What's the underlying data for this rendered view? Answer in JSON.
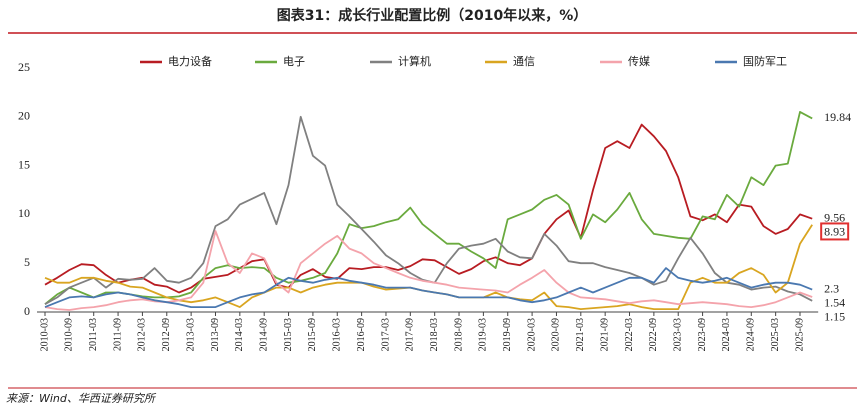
{
  "chart_data": {
    "type": "line",
    "title": "图表31：成长行业配置比例（2010年以来，%）",
    "source": "来源：Wind、华西证券研究所",
    "categories": [
      "2010-03",
      null,
      "2010-09",
      null,
      "2011-03",
      null,
      "2011-09",
      null,
      "2012-03",
      null,
      "2012-09",
      null,
      "2013-03",
      null,
      "2013-09",
      null,
      "2014-03",
      null,
      "2014-09",
      null,
      "2015-03",
      null,
      "2015-09",
      null,
      "2016-03",
      null,
      "2016-09",
      null,
      "2017-03",
      null,
      "2017-09",
      null,
      "2018-03",
      null,
      "2018-09",
      null,
      "2019-03",
      null,
      "2019-09",
      null,
      "2020-03",
      null,
      "2020-09",
      null,
      "2021-03",
      null,
      "2021-09",
      null,
      "2022-03",
      null,
      "2022-09",
      null,
      "2023-03",
      null,
      "2023-09",
      null,
      "2024-03",
      null,
      "2024-09",
      null,
      "2025-03",
      null,
      "2025-09",
      null
    ],
    "ylim": [
      0,
      25
    ],
    "yticks": [
      0,
      5,
      10,
      15,
      20,
      25
    ],
    "series": [
      {
        "name": "电力设备",
        "color": "#b81c22",
        "values": [
          2.8,
          3.5,
          4.3,
          4.9,
          4.8,
          3.8,
          3.0,
          3.3,
          3.5,
          2.8,
          2.6,
          2.0,
          2.5,
          3.4,
          3.6,
          3.8,
          4.5,
          5.2,
          5.4,
          2.8,
          2.5,
          3.8,
          4.4,
          3.6,
          3.4,
          4.5,
          4.4,
          4.6,
          4.6,
          4.3,
          4.7,
          5.4,
          5.3,
          4.6,
          3.9,
          4.4,
          5.2,
          5.6,
          5.0,
          4.8,
          5.5,
          8.0,
          9.5,
          10.4,
          7.6,
          12.5,
          16.8,
          17.5,
          16.8,
          19.2,
          18.0,
          16.5,
          13.8,
          9.8,
          9.4,
          10.0,
          9.2,
          11.0,
          10.8,
          8.8,
          8.0,
          8.5,
          10.0,
          9.56
        ]
      },
      {
        "name": "电子",
        "color": "#6aaa3e",
        "values": [
          0.8,
          1.8,
          2.5,
          2.0,
          1.5,
          2.0,
          2.0,
          1.8,
          1.6,
          1.5,
          1.5,
          1.6,
          2.0,
          3.5,
          4.5,
          4.8,
          4.5,
          4.6,
          4.5,
          3.5,
          3.0,
          3.2,
          3.5,
          4.0,
          6.0,
          9.0,
          8.6,
          8.8,
          9.2,
          9.5,
          10.7,
          9.0,
          8.0,
          7.0,
          7.0,
          6.2,
          5.5,
          4.5,
          9.5,
          10.0,
          10.5,
          11.5,
          12.0,
          11.0,
          7.5,
          10.0,
          9.2,
          10.5,
          12.2,
          9.5,
          8.0,
          7.8,
          7.6,
          7.5,
          9.8,
          9.5,
          12.0,
          10.8,
          13.8,
          13.0,
          15.0,
          15.2,
          20.5,
          19.84
        ]
      },
      {
        "name": "计算机",
        "color": "#808080",
        "values": [
          0.8,
          1.5,
          2.5,
          3.0,
          3.5,
          2.5,
          3.4,
          3.3,
          3.4,
          4.5,
          3.2,
          3.0,
          3.5,
          5.0,
          8.8,
          9.5,
          11.0,
          11.6,
          12.2,
          9.0,
          13.0,
          20.0,
          16.0,
          15.0,
          11.0,
          9.8,
          8.5,
          7.2,
          5.8,
          5.0,
          4.0,
          3.3,
          3.0,
          5.0,
          6.5,
          6.8,
          7.0,
          7.5,
          6.2,
          5.6,
          5.5,
          8.0,
          6.8,
          5.2,
          5.0,
          5.0,
          4.6,
          4.3,
          4.0,
          3.5,
          2.8,
          3.2,
          5.5,
          7.6,
          6.0,
          4.0,
          3.0,
          2.8,
          2.3,
          2.5,
          2.6,
          2.1,
          1.8,
          1.15
        ]
      },
      {
        "name": "通信",
        "color": "#d9a520",
        "boxed": true,
        "values": [
          3.5,
          3.0,
          3.0,
          3.5,
          3.5,
          3.2,
          3.0,
          2.6,
          2.5,
          2.0,
          1.5,
          1.2,
          1.0,
          1.2,
          1.5,
          1.0,
          0.5,
          1.5,
          2.0,
          2.5,
          2.5,
          2.0,
          2.5,
          2.8,
          3.0,
          3.0,
          3.0,
          2.6,
          2.3,
          2.4,
          2.5,
          2.2,
          2.0,
          1.8,
          1.5,
          1.5,
          1.5,
          2.0,
          1.5,
          1.3,
          1.2,
          2.0,
          0.6,
          0.5,
          0.3,
          0.4,
          0.5,
          0.6,
          0.8,
          0.5,
          0.3,
          0.3,
          0.3,
          3.0,
          3.5,
          3.0,
          3.0,
          4.0,
          4.5,
          3.8,
          2.0,
          3.0,
          7.0,
          8.93
        ]
      },
      {
        "name": "传媒",
        "color": "#f4a3ab",
        "values": [
          0.5,
          0.3,
          0.2,
          0.4,
          0.5,
          0.7,
          1.0,
          1.2,
          1.3,
          1.1,
          1.0,
          1.2,
          1.5,
          3.0,
          8.3,
          5.0,
          4.0,
          6.0,
          5.5,
          3.0,
          2.0,
          5.0,
          6.0,
          7.0,
          7.8,
          6.5,
          6.0,
          5.0,
          4.5,
          4.0,
          3.5,
          3.2,
          3.0,
          2.8,
          2.5,
          2.4,
          2.3,
          2.2,
          2.0,
          2.8,
          3.5,
          4.3,
          3.0,
          2.0,
          1.5,
          1.4,
          1.3,
          1.1,
          0.9,
          1.1,
          1.2,
          1.0,
          0.8,
          0.9,
          1.0,
          0.9,
          0.8,
          0.6,
          0.5,
          0.7,
          1.0,
          1.5,
          2.0,
          1.54
        ]
      },
      {
        "name": "国防军工",
        "color": "#4a78b0",
        "values": [
          0.5,
          1.0,
          1.5,
          1.6,
          1.5,
          1.8,
          2.0,
          1.8,
          1.5,
          1.2,
          1.0,
          0.8,
          0.5,
          0.5,
          0.5,
          1.0,
          1.5,
          1.8,
          2.0,
          2.8,
          3.5,
          3.2,
          3.0,
          3.3,
          3.5,
          3.2,
          3.0,
          2.8,
          2.5,
          2.5,
          2.5,
          2.2,
          2.0,
          1.8,
          1.5,
          1.5,
          1.5,
          1.5,
          1.5,
          1.2,
          1.0,
          1.2,
          1.5,
          2.0,
          2.5,
          2.0,
          2.5,
          3.0,
          3.5,
          3.5,
          3.0,
          4.5,
          3.5,
          3.2,
          3.0,
          3.2,
          3.5,
          3.0,
          2.5,
          2.8,
          3.0,
          3.0,
          2.8,
          2.3
        ]
      }
    ]
  }
}
